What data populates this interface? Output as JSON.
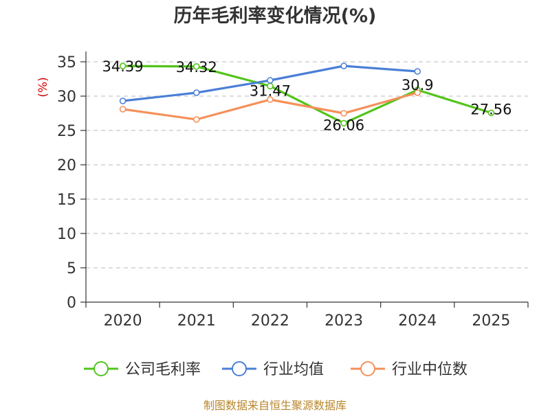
{
  "chart_data": {
    "type": "line",
    "title": "历年毛利率变化情况(%)",
    "ylabel": "(%)",
    "categories": [
      "2020",
      "2021",
      "2022",
      "2023",
      "2024",
      "2025"
    ],
    "y_ticks": [
      "0",
      "5",
      "10",
      "15",
      "20",
      "25",
      "30",
      "35"
    ],
    "ylim": [
      0,
      35
    ],
    "grid": "horizontal-dashed",
    "legend_position": "bottom",
    "series": [
      {
        "name": "公司毛利率",
        "color": "#52c41a",
        "values": [
          34.39,
          34.32,
          31.47,
          26.06,
          30.9,
          27.56
        ],
        "labels": [
          "34.39",
          "34.32",
          "31.47",
          "26.06",
          "30.9",
          "27.56"
        ]
      },
      {
        "name": "行业均值",
        "color": "#4a7fd8",
        "values": [
          29.3,
          30.5,
          32.3,
          34.4,
          33.6,
          null
        ]
      },
      {
        "name": "行业中位数",
        "color": "#f5905a",
        "values": [
          28.1,
          26.6,
          29.5,
          27.5,
          30.5,
          null
        ]
      }
    ]
  },
  "source_note": "制图数据来自恒生聚源数据库"
}
